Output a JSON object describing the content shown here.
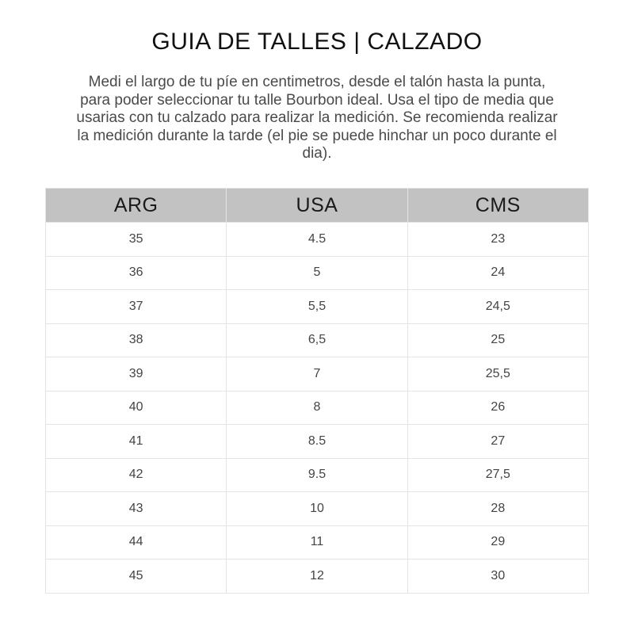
{
  "title": "GUIA DE TALLES | CALZADO",
  "description": "Medi el largo de tu píe en centimetros, desde el talón hasta la punta, para poder seleccionar tu talle Bourbon ideal. Usa el tipo de media que usarias con tu calzado para realizar la medición. Se recomienda realizar la medición durante la tarde (el pie se puede hinchar un poco durante el dia).",
  "table": {
    "header_background": "#c2c2c2",
    "headers": [
      "ARG",
      "USA",
      "CMS"
    ],
    "rows": [
      [
        "35",
        "4.5",
        "23"
      ],
      [
        "36",
        "5",
        "24"
      ],
      [
        "37",
        "5,5",
        "24,5"
      ],
      [
        "38",
        "6,5",
        "25"
      ],
      [
        "39",
        "7",
        "25,5"
      ],
      [
        "40",
        "8",
        "26"
      ],
      [
        "41",
        "8.5",
        "27"
      ],
      [
        "42",
        "9.5",
        "27,5"
      ],
      [
        "43",
        "10",
        "28"
      ],
      [
        "44",
        "11",
        "29"
      ],
      [
        "45",
        "12",
        "30"
      ]
    ]
  }
}
